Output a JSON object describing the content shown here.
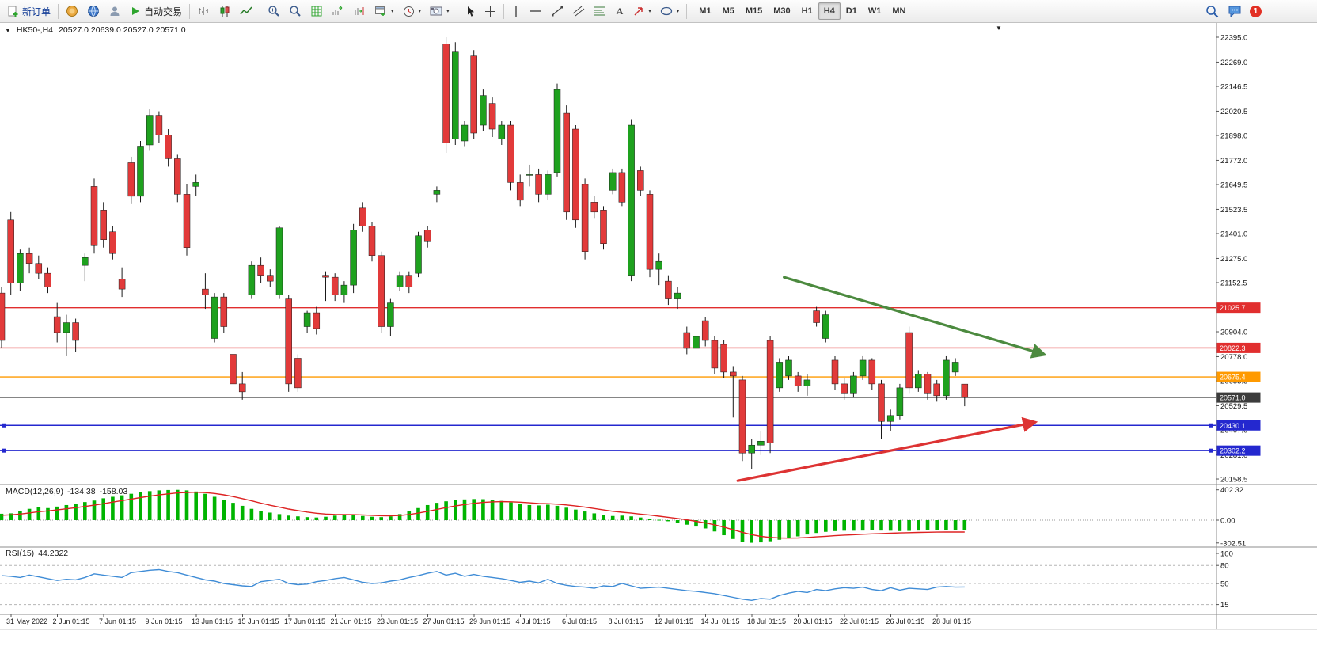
{
  "toolbar": {
    "new_order_label": "新订单",
    "autotrading_label": "自动交易",
    "timeframes": [
      "M1",
      "M5",
      "M15",
      "M30",
      "H1",
      "H4",
      "D1",
      "W1",
      "MN"
    ],
    "active_timeframe": "H4",
    "notification_count": "1"
  },
  "chart": {
    "dropdown_marker": "▼",
    "symbol_period": "HK50-,H4",
    "ohlc_readout": "20527.0 20639.0 20527.0 20571.0",
    "shift_marker": "▼"
  },
  "chart_data": {
    "type": "candlestick",
    "symbol": "HK50-",
    "period": "H4",
    "ohlc_display": {
      "open": "20527.0",
      "high": "20639.0",
      "low": "20527.0",
      "close": "20571.0"
    },
    "price_axis_ticks": [
      "22395.0",
      "22269.0",
      "22146.5",
      "22020.5",
      "21898.0",
      "21772.0",
      "21649.5",
      "21523.5",
      "21401.0",
      "21275.0",
      "21152.5",
      "20904.0",
      "20778.0",
      "20655.5",
      "20529.5",
      "20407.0",
      "20281.0",
      "20158.5"
    ],
    "time_axis_labels": [
      "31 May 2022",
      "2 Jun 01:15",
      "7 Jun 01:15",
      "9 Jun 01:15",
      "13 Jun 01:15",
      "15 Jun 01:15",
      "17 Jun 01:15",
      "21 Jun 01:15",
      "23 Jun 01:15",
      "27 Jun 01:15",
      "29 Jun 01:15",
      "4 Jul 01:15",
      "6 Jul 01:15",
      "8 Jul 01:15",
      "12 Jul 01:15",
      "14 Jul 01:15",
      "18 Jul 01:15",
      "20 Jul 01:15",
      "22 Jul 01:15",
      "26 Jul 01:15",
      "28 Jul 01:15"
    ],
    "candles": [
      [
        21100,
        21130,
        20820,
        20860
      ],
      [
        21470,
        21510,
        21090,
        21150
      ],
      [
        21150,
        21320,
        21110,
        21300
      ],
      [
        21300,
        21330,
        21200,
        21250
      ],
      [
        21250,
        21290,
        21170,
        21200
      ],
      [
        21200,
        21230,
        21100,
        21130
      ],
      [
        20980,
        21050,
        20850,
        20900
      ],
      [
        20900,
        20990,
        20780,
        20950
      ],
      [
        20950,
        20970,
        20800,
        20860
      ],
      [
        21240,
        21300,
        21160,
        21280
      ],
      [
        21640,
        21680,
        21300,
        21340
      ],
      [
        21520,
        21560,
        21330,
        21370
      ],
      [
        21410,
        21440,
        21270,
        21300
      ],
      [
        21170,
        21230,
        21080,
        21120
      ],
      [
        21760,
        21790,
        21550,
        21590
      ],
      [
        21590,
        21870,
        21560,
        21840
      ],
      [
        21850,
        22030,
        21820,
        22000
      ],
      [
        22000,
        22020,
        21860,
        21900
      ],
      [
        21900,
        21930,
        21740,
        21780
      ],
      [
        21780,
        21800,
        21560,
        21600
      ],
      [
        21600,
        21650,
        21290,
        21330
      ],
      [
        21640,
        21700,
        21590,
        21660
      ],
      [
        21120,
        21200,
        21020,
        21090
      ],
      [
        20870,
        21100,
        20850,
        21080
      ],
      [
        21080,
        21100,
        20900,
        20930
      ],
      [
        20790,
        20830,
        20590,
        20640
      ],
      [
        20640,
        20700,
        20560,
        20600
      ],
      [
        21090,
        21260,
        21070,
        21240
      ],
      [
        21240,
        21280,
        21150,
        21190
      ],
      [
        21190,
        21220,
        21130,
        21160
      ],
      [
        21090,
        21440,
        21070,
        21430
      ],
      [
        21070,
        21090,
        20600,
        20640
      ],
      [
        20770,
        20790,
        20600,
        20620
      ],
      [
        20930,
        21010,
        20900,
        21000
      ],
      [
        21000,
        21030,
        20890,
        20920
      ],
      [
        21190,
        21210,
        21060,
        21180
      ],
      [
        21180,
        21200,
        21060,
        21090
      ],
      [
        21090,
        21160,
        21050,
        21140
      ],
      [
        21140,
        21450,
        21100,
        21420
      ],
      [
        21530,
        21560,
        21410,
        21440
      ],
      [
        21440,
        21460,
        21260,
        21290
      ],
      [
        21290,
        21310,
        20900,
        20930
      ],
      [
        20930,
        21070,
        20880,
        21050
      ],
      [
        21130,
        21210,
        21110,
        21190
      ],
      [
        21190,
        21210,
        21100,
        21130
      ],
      [
        21200,
        21410,
        21180,
        21390
      ],
      [
        21420,
        21440,
        21330,
        21360
      ],
      [
        21600,
        21640,
        21560,
        21620
      ],
      [
        22360,
        22395,
        21810,
        21860
      ],
      [
        21880,
        22370,
        21850,
        22320
      ],
      [
        21870,
        21970,
        21840,
        21950
      ],
      [
        22300,
        22330,
        21880,
        21910
      ],
      [
        21950,
        22130,
        21920,
        22100
      ],
      [
        22060,
        22090,
        21890,
        21930
      ],
      [
        21880,
        21970,
        21850,
        21950
      ],
      [
        21950,
        21970,
        21620,
        21660
      ],
      [
        21660,
        21700,
        21540,
        21570
      ],
      [
        21700,
        21750,
        21640,
        21700
      ],
      [
        21700,
        21730,
        21560,
        21600
      ],
      [
        21600,
        21720,
        21570,
        21700
      ],
      [
        21710,
        22160,
        21690,
        22130
      ],
      [
        22010,
        22050,
        21470,
        21510
      ],
      [
        21930,
        21950,
        21430,
        21470
      ],
      [
        21650,
        21680,
        21270,
        21310
      ],
      [
        21560,
        21590,
        21480,
        21510
      ],
      [
        21520,
        21540,
        21320,
        21350
      ],
      [
        21620,
        21730,
        21600,
        21710
      ],
      [
        21710,
        21730,
        21540,
        21560
      ],
      [
        21190,
        21980,
        21160,
        21950
      ],
      [
        21720,
        21740,
        21590,
        21620
      ],
      [
        21600,
        21620,
        21180,
        21220
      ],
      [
        21220,
        21300,
        21140,
        21260
      ],
      [
        21160,
        21190,
        21040,
        21070
      ],
      [
        21070,
        21130,
        21020,
        21100
      ],
      [
        20900,
        20930,
        20790,
        20820
      ],
      [
        20820,
        20910,
        20800,
        20880
      ],
      [
        20960,
        20980,
        20830,
        20860
      ],
      [
        20860,
        20880,
        20690,
        20720
      ],
      [
        20840,
        20860,
        20670,
        20700
      ],
      [
        20700,
        20730,
        20470,
        20680
      ],
      [
        20660,
        20680,
        20250,
        20290
      ],
      [
        20290,
        20360,
        20210,
        20330
      ],
      [
        20330,
        20400,
        20280,
        20350
      ],
      [
        20860,
        20880,
        20290,
        20340
      ],
      [
        20620,
        20770,
        20600,
        20750
      ],
      [
        20680,
        20780,
        20660,
        20760
      ],
      [
        20680,
        20700,
        20600,
        20630
      ],
      [
        20630,
        20690,
        20580,
        20660
      ],
      [
        21010,
        21030,
        20930,
        20950
      ],
      [
        20870,
        21010,
        20850,
        20990
      ],
      [
        20760,
        20780,
        20610,
        20640
      ],
      [
        20640,
        20670,
        20560,
        20590
      ],
      [
        20590,
        20700,
        20570,
        20680
      ],
      [
        20680,
        20780,
        20660,
        20760
      ],
      [
        20760,
        20770,
        20610,
        20640
      ],
      [
        20640,
        20660,
        20360,
        20450
      ],
      [
        20450,
        20510,
        20400,
        20480
      ],
      [
        20480,
        20640,
        20460,
        20620
      ],
      [
        20900,
        20930,
        20590,
        20620
      ],
      [
        20620,
        20710,
        20600,
        20690
      ],
      [
        20690,
        20700,
        20560,
        20590
      ],
      [
        20640,
        20660,
        20550,
        20580
      ],
      [
        20580,
        20780,
        20560,
        20760
      ],
      [
        20700,
        20770,
        20680,
        20750
      ],
      [
        20639,
        20639,
        20527,
        20571
      ]
    ],
    "horizontal_lines": [
      {
        "price": 21025.7,
        "label": "21025.7",
        "color": "#e12e2e",
        "handles": false
      },
      {
        "price": 20822.3,
        "label": "20822.3",
        "color": "#e12e2e",
        "handles": false
      },
      {
        "price": 20675.4,
        "label": "20675.4",
        "color": "#ff9a00",
        "handles": false
      },
      {
        "price": 20571.0,
        "label": "20571.0",
        "color": "#3c3c3c",
        "handles": false
      },
      {
        "price": 20430.1,
        "label": "20430.1",
        "color": "#2428cf",
        "handles": true
      },
      {
        "price": 20302.2,
        "label": "20302.2",
        "color": "#2428cf",
        "handles": true
      }
    ],
    "arrows": [
      {
        "name": "downtrend-arrow",
        "color": "#4c8a3f",
        "from_candle": 84.5,
        "from_price": 21180,
        "to_candle": 112.5,
        "to_price": 20790
      },
      {
        "name": "uptrend-arrow",
        "color": "#dd3333",
        "from_candle": 79.5,
        "from_price": 20150,
        "to_candle": 111.5,
        "to_price": 20445
      }
    ],
    "macd": {
      "label": "MACD(12,26,9)",
      "value_main": "-134.38",
      "value_signal": "-158.03",
      "axis_ticks": [
        {
          "label": "402.32",
          "value": 402.32
        },
        {
          "label": "0.00",
          "value": 0
        },
        {
          "label": "-302.51",
          "value": -302.51
        }
      ],
      "histogram": [
        85,
        90,
        120,
        150,
        170,
        160,
        180,
        200,
        220,
        240,
        260,
        290,
        310,
        330,
        350,
        370,
        385,
        395,
        400,
        402,
        395,
        380,
        350,
        310,
        270,
        230,
        190,
        150,
        120,
        100,
        80,
        60,
        50,
        40,
        35,
        45,
        60,
        70,
        65,
        55,
        45,
        40,
        50,
        80,
        120,
        160,
        200,
        230,
        250,
        265,
        275,
        280,
        278,
        270,
        255,
        235,
        215,
        200,
        195,
        205,
        190,
        165,
        140,
        115,
        90,
        70,
        55,
        60,
        50,
        35,
        20,
        5,
        -15,
        -35,
        -60,
        -85,
        -110,
        -150,
        -200,
        -250,
        -285,
        -300,
        -295,
        -280,
        -260,
        -240,
        -215,
        -190,
        -170,
        -155,
        -145,
        -140,
        -140,
        -138,
        -136,
        -138,
        -140,
        -145,
        -142,
        -138,
        -136,
        -135,
        -134,
        -134,
        -134.38
      ],
      "signal": [
        65,
        70,
        81,
        96,
        112,
        123,
        136,
        150,
        165,
        182,
        199,
        219,
        239,
        259,
        279,
        299,
        318,
        335,
        349,
        361,
        368,
        371,
        366,
        354,
        336,
        313,
        286,
        256,
        226,
        198,
        172,
        147,
        126,
        107,
        91,
        81,
        76,
        75,
        73,
        69,
        64,
        59,
        57,
        62,
        75,
        94,
        117,
        142,
        166,
        188,
        207,
        223,
        235,
        243,
        246,
        244,
        238,
        230,
        222,
        218,
        212,
        202,
        188,
        172,
        154,
        136,
        118,
        105,
        93,
        80,
        67,
        53,
        38,
        22,
        4,
        -16,
        -37,
        -62,
        -92,
        -127,
        -162,
        -192,
        -215,
        -229,
        -236,
        -238,
        -236,
        -230,
        -222,
        -214,
        -206,
        -199,
        -193,
        -187,
        -182,
        -177,
        -173,
        -169,
        -166,
        -163,
        -161,
        -159,
        -158,
        -158,
        -158.03
      ]
    },
    "rsi": {
      "label": "RSI(15)",
      "value": "44.2322",
      "axis_ticks": [
        {
          "label": "100",
          "value": 100
        },
        {
          "label": "80",
          "value": 80
        },
        {
          "label": "50",
          "value": 50
        },
        {
          "label": "15",
          "value": 15
        }
      ],
      "levels": [
        80,
        50,
        15
      ],
      "values": [
        63,
        62,
        60,
        64,
        61,
        58,
        55,
        57,
        56,
        60,
        66,
        64,
        62,
        60,
        68,
        70,
        72,
        73,
        70,
        68,
        64,
        60,
        56,
        54,
        50,
        48,
        46,
        45,
        53,
        55,
        57,
        50,
        48,
        49,
        53,
        55,
        58,
        60,
        56,
        52,
        50,
        51,
        54,
        56,
        60,
        63,
        67,
        70,
        64,
        67,
        62,
        65,
        62,
        60,
        58,
        55,
        52,
        54,
        51,
        57,
        50,
        47,
        45,
        44,
        42,
        46,
        45,
        50,
        46,
        42,
        43,
        44,
        42,
        40,
        38,
        37,
        35,
        33,
        30,
        27,
        24,
        22,
        25,
        24,
        30,
        34,
        37,
        35,
        40,
        38,
        41,
        43,
        42,
        44,
        40,
        38,
        43,
        39,
        42,
        41,
        40,
        44,
        45,
        44,
        44.23
      ]
    },
    "colors": {
      "bull_candle": "#1ea11e",
      "bear_candle": "#e23a3a",
      "macd_histogram": "#00b400",
      "macd_signal": "#dd2222",
      "rsi_line": "#3f8cd6"
    }
  }
}
